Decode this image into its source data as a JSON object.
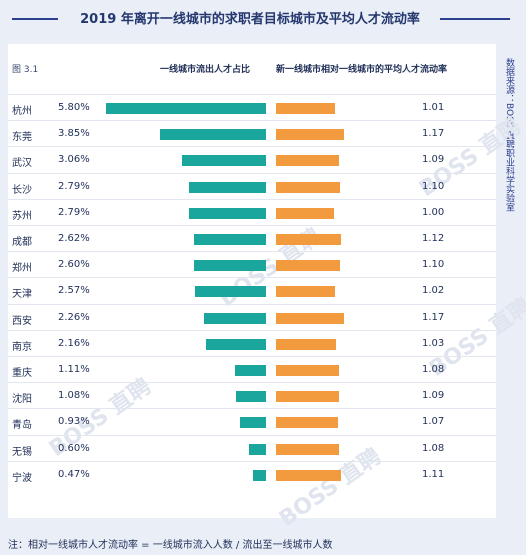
{
  "title": "2019 年离开一线城市的求职者目标城市及平均人才流动率",
  "figure_label": "图 3.1",
  "header_left": "一线城市流出人才占比",
  "header_right": "新一线城市相对一线城市的平均人才流动率",
  "source": "数据来源：BOSS 直聘职业科学实验室",
  "watermark": "BOSS 直聘",
  "note": "注：相对一线城市人才流动率 = 一线城市流入人数 / 流出至一线城市人数",
  "colors": {
    "share_bar": "#1aa69c",
    "ratio_bar": "#f19a3e",
    "title": "#24376e"
  },
  "chart_data": {
    "type": "bar",
    "categories": [
      "杭州",
      "东莞",
      "武汉",
      "长沙",
      "苏州",
      "成都",
      "郑州",
      "天津",
      "西安",
      "南京",
      "重庆",
      "沈阳",
      "青岛",
      "无锡",
      "宁波"
    ],
    "series": [
      {
        "name": "一线城市流出人才占比",
        "values": [
          5.8,
          3.85,
          3.06,
          2.79,
          2.79,
          2.62,
          2.6,
          2.57,
          2.26,
          2.16,
          1.11,
          1.08,
          0.93,
          0.6,
          0.47
        ],
        "labels": [
          "5.80%",
          "3.85%",
          "3.06%",
          "2.79%",
          "2.79%",
          "2.62%",
          "2.60%",
          "2.57%",
          "2.26%",
          "2.16%",
          "1.11%",
          "1.08%",
          "0.93%",
          "0.60%",
          "0.47%"
        ]
      },
      {
        "name": "新一线城市相对一线城市的平均人才流动率",
        "values": [
          1.01,
          1.17,
          1.09,
          1.1,
          1.0,
          1.12,
          1.1,
          1.02,
          1.17,
          1.03,
          1.08,
          1.09,
          1.07,
          1.08,
          1.11
        ],
        "labels": [
          "1.01",
          "1.17",
          "1.09",
          "1.10",
          "1.00",
          "1.12",
          "1.10",
          "1.02",
          "1.17",
          "1.03",
          "1.08",
          "1.09",
          "1.07",
          "1.08",
          "1.11"
        ]
      }
    ],
    "title": "2019 年离开一线城市的求职者目标城市及平均人才流动率",
    "xlabel": "",
    "ylabel": "",
    "legend": "none"
  }
}
